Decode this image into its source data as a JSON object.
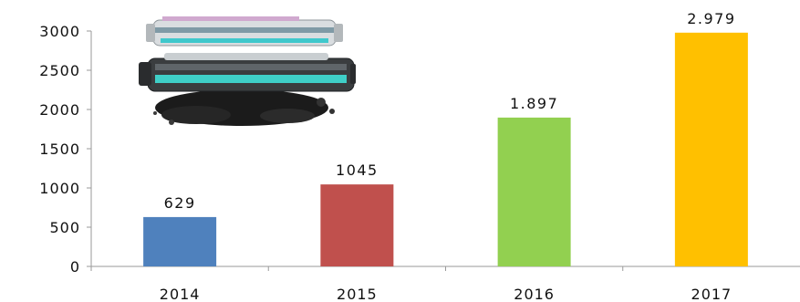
{
  "chart_data": {
    "type": "bar",
    "categories": [
      "2014",
      "2015",
      "2016",
      "2017"
    ],
    "values": [
      629,
      1045,
      1897,
      2979
    ],
    "data_labels": [
      "629",
      "1045",
      "1.897",
      "2.979"
    ],
    "yticks": [
      0,
      500,
      1000,
      1500,
      2000,
      2500,
      3000
    ],
    "ytick_labels": [
      "0",
      "500",
      "1000",
      "1500",
      "2000",
      "2500",
      "3000"
    ],
    "ylim": [
      0,
      3000
    ],
    "title": "",
    "xlabel": "",
    "ylabel": "",
    "grid": false,
    "legend": "none",
    "colors": [
      "#4f81bd",
      "#c0504d",
      "#92d050",
      "#ffc000"
    ]
  }
}
